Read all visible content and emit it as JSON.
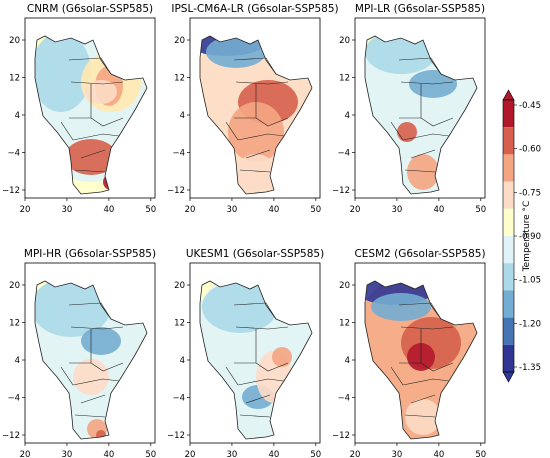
{
  "figure": {
    "panels": [
      {
        "id": "cnrm",
        "title": "CNRM (G6solar-SSP585)"
      },
      {
        "id": "ipsl",
        "title": "IPSL-CM6A-LR (G6solar-SSP585)"
      },
      {
        "id": "mpilr",
        "title": "MPI-LR (G6solar-SSP585)"
      },
      {
        "id": "mpihr",
        "title": "MPI-HR (G6solar-SSP585)"
      },
      {
        "id": "ukesm",
        "title": "UKESM1 (G6solar-SSP585)"
      },
      {
        "id": "cesm",
        "title": "CESM2 (G6solar-SSP585)"
      }
    ],
    "x_ticks": [
      "20",
      "30",
      "40",
      "50"
    ],
    "y_ticks": [
      "20",
      "12",
      "4",
      "−4",
      "−12"
    ],
    "colorbar": {
      "label": "Temperature °C",
      "ticks": [
        "-0.45",
        "-0.60",
        "-0.75",
        "-0.90",
        "-1.05",
        "-1.20",
        "-1.35"
      ],
      "colors": [
        "#b2182b",
        "#d6604d",
        "#f4a582",
        "#fddbc7",
        "#ffffcc",
        "#e0f3f8",
        "#abd9e9",
        "#74add1",
        "#4575b4",
        "#313695"
      ]
    }
  }
}
